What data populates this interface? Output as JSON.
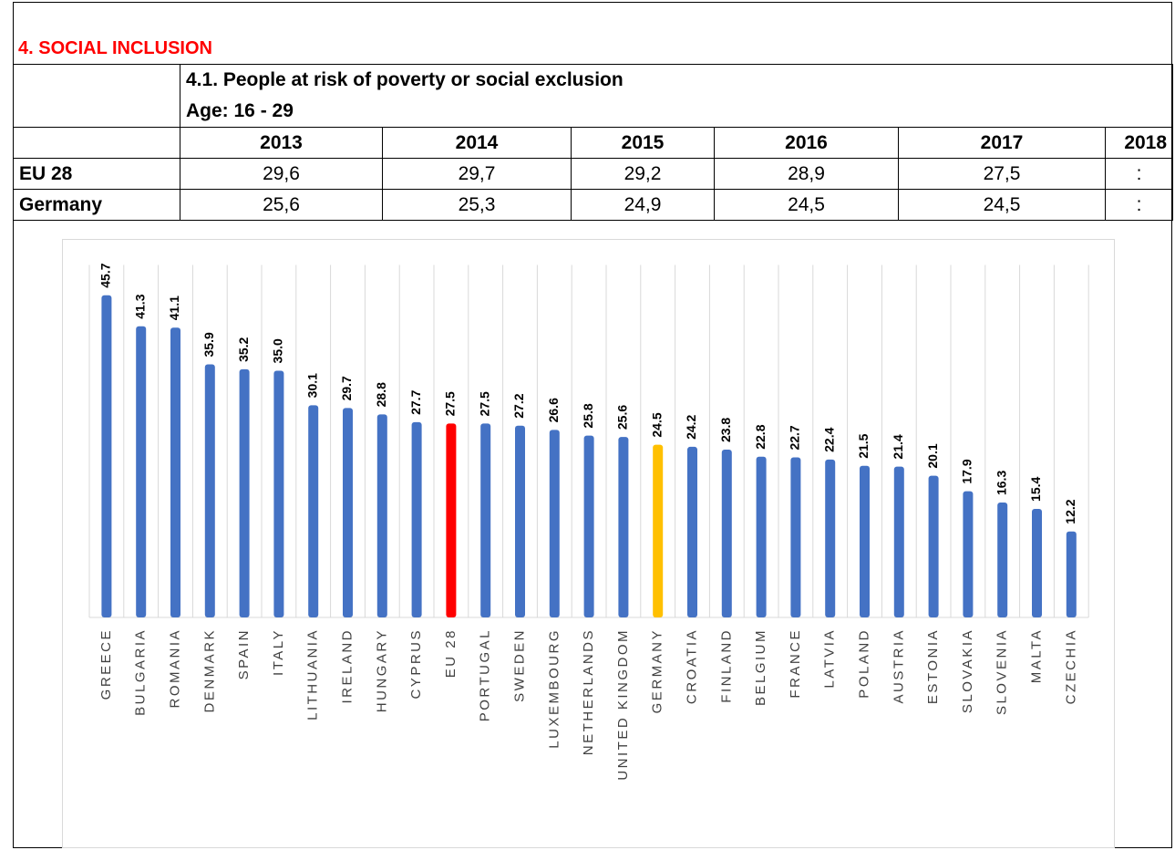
{
  "section": {
    "title": "4. SOCIAL INCLUSION"
  },
  "table": {
    "title_line1": "4.1. People at risk of poverty or social exclusion",
    "title_line2": "Age: 16 - 29",
    "years": [
      "2013",
      "2014",
      "2015",
      "2016",
      "2017",
      "2018"
    ],
    "rows": [
      {
        "label": "EU 28",
        "values": [
          "29,6",
          "29,7",
          "29,2",
          "28,9",
          "27,5",
          ":"
        ]
      },
      {
        "label": "Germany",
        "values": [
          "25,6",
          "25,3",
          "24,9",
          "24,5",
          "24,5",
          ":"
        ]
      }
    ]
  },
  "colors": {
    "bar": "#4472c4",
    "eu28": "#ff0000",
    "germany": "#ffc000",
    "grid": "#d9d9d9"
  },
  "chart_data": {
    "type": "bar",
    "orientation": "vertical",
    "title": "",
    "xlabel": "",
    "ylabel": "",
    "grid": "vertical",
    "ylim": [
      0,
      50
    ],
    "categories": [
      "GREECE",
      "BULGARIA",
      "ROMANIA",
      "DENMARK",
      "SPAIN",
      "ITALY",
      "LITHUANIA",
      "IRELAND",
      "HUNGARY",
      "CYPRUS",
      "EU 28",
      "PORTUGAL",
      "SWEDEN",
      "LUXEMBOURG",
      "NETHERLANDS",
      "UNITED KINGDOM",
      "GERMANY",
      "CROATIA",
      "FINLAND",
      "BELGIUM",
      "FRANCE",
      "LATVIA",
      "POLAND",
      "AUSTRIA",
      "ESTONIA",
      "SLOVAKIA",
      "SLOVENIA",
      "MALTA",
      "CZECHIA"
    ],
    "values": [
      45.7,
      41.3,
      41.1,
      35.9,
      35.2,
      35.0,
      30.1,
      29.7,
      28.8,
      27.7,
      27.5,
      27.5,
      27.2,
      26.6,
      25.8,
      25.6,
      24.5,
      24.2,
      23.8,
      22.8,
      22.7,
      22.4,
      21.5,
      21.4,
      20.1,
      17.9,
      16.3,
      15.4,
      12.2
    ],
    "highlights": {
      "EU 28": "#ff0000",
      "GERMANY": "#ffc000"
    }
  }
}
